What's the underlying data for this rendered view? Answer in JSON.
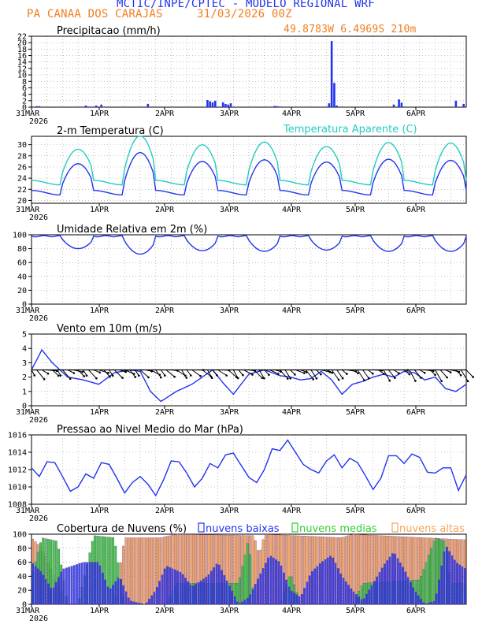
{
  "header": {
    "title": "MCTIC/INPE/CPTEC - MODELO REGIONAL WRF",
    "location": "PA CANAA DOS CARAJAS",
    "run": "31/03/2026 00Z",
    "coords": "49.8783W 6.4969S 210m"
  },
  "x_axis": {
    "day_labels": [
      "31MAR",
      "1APR",
      "2APR",
      "3APR",
      "4APR",
      "5APR",
      "6APR"
    ],
    "year_label": "2026",
    "hours_total": 168,
    "step_hours": 1
  },
  "colors": {
    "blue": "#2233ee",
    "cyan": "#22ccc0",
    "orange": "#f5a35a",
    "green": "#33cc33",
    "black": "#000000"
  },
  "chart_data": [
    {
      "id": "precip",
      "type": "bar",
      "title": "Precipitacao (mm/h)",
      "ylim": [
        0,
        22
      ],
      "yticks": [
        0,
        2,
        4,
        6,
        8,
        10,
        12,
        14,
        16,
        18,
        20,
        22
      ],
      "events": [
        {
          "h": 2,
          "v": 0.3
        },
        {
          "h": 3,
          "v": 0.3
        },
        {
          "h": 21,
          "v": 0.5
        },
        {
          "h": 22,
          "v": 0.2
        },
        {
          "h": 25,
          "v": 0.5
        },
        {
          "h": 27,
          "v": 0.8
        },
        {
          "h": 45,
          "v": 1.0
        },
        {
          "h": 68,
          "v": 2.2
        },
        {
          "h": 69,
          "v": 1.8
        },
        {
          "h": 70,
          "v": 1.5
        },
        {
          "h": 71,
          "v": 2.0
        },
        {
          "h": 74,
          "v": 1.5
        },
        {
          "h": 75,
          "v": 1.0
        },
        {
          "h": 76,
          "v": 0.8
        },
        {
          "h": 77,
          "v": 1.2
        },
        {
          "h": 94,
          "v": 0.4
        },
        {
          "h": 95,
          "v": 0.3
        },
        {
          "h": 115,
          "v": 1.2
        },
        {
          "h": 116,
          "v": 20.5
        },
        {
          "h": 117,
          "v": 7.5
        },
        {
          "h": 118,
          "v": 0.5
        },
        {
          "h": 140,
          "v": 0.8
        },
        {
          "h": 142,
          "v": 2.4
        },
        {
          "h": 143,
          "v": 1.4
        },
        {
          "h": 164,
          "v": 2.0
        },
        {
          "h": 167,
          "v": 1.0
        }
      ]
    },
    {
      "id": "temp",
      "type": "line",
      "title": "2-m Temperatura (C)",
      "series_labels": [
        "Temperatura Aparente (C)"
      ],
      "ylim": [
        19.5,
        31.5
      ],
      "yticks": [
        20,
        22,
        24,
        26,
        28,
        30
      ],
      "series": [
        {
          "name": "Temperatura (C)",
          "color": "blue",
          "base": 20.8,
          "amps": [
            5.2,
            7.2,
            5.6,
            5.9,
            5.5,
            6.0,
            5.8,
            5.5
          ]
        },
        {
          "name": "Temperatura Aparente (C)",
          "color": "cyan",
          "base": 22.6,
          "amps": [
            6.0,
            8.4,
            6.8,
            7.3,
            6.5,
            7.2,
            7.1,
            6.4
          ]
        }
      ]
    },
    {
      "id": "rh",
      "type": "line",
      "title": "Umidade Relativa em 2m (%)",
      "ylim": [
        0,
        100
      ],
      "yticks": [
        0,
        20,
        40,
        60,
        80,
        100
      ],
      "min_by_day": [
        80,
        72,
        77,
        76,
        78,
        76,
        76,
        78
      ]
    },
    {
      "id": "wind",
      "type": "line",
      "title": "Vento em 10m (m/s)",
      "ylim": [
        0,
        5
      ],
      "yticks": [
        0,
        1,
        2,
        3,
        4,
        5
      ],
      "speed_points": [
        [
          0,
          2.5
        ],
        [
          4,
          3.9
        ],
        [
          8,
          3.0
        ],
        [
          14,
          2.0
        ],
        [
          20,
          1.8
        ],
        [
          26,
          1.5
        ],
        [
          32,
          2.3
        ],
        [
          38,
          2.5
        ],
        [
          42,
          2.4
        ],
        [
          46,
          1.0
        ],
        [
          50,
          0.3
        ],
        [
          56,
          1.0
        ],
        [
          62,
          1.5
        ],
        [
          66,
          2.0
        ],
        [
          70,
          2.5
        ],
        [
          74,
          1.6
        ],
        [
          78,
          0.8
        ],
        [
          84,
          2.2
        ],
        [
          90,
          2.5
        ],
        [
          96,
          2.1
        ],
        [
          100,
          2.0
        ],
        [
          104,
          1.8
        ],
        [
          108,
          1.9
        ],
        [
          112,
          2.4
        ],
        [
          116,
          1.8
        ],
        [
          120,
          0.8
        ],
        [
          124,
          1.5
        ],
        [
          128,
          1.7
        ],
        [
          132,
          2.0
        ],
        [
          136,
          2.2
        ],
        [
          140,
          2.0
        ],
        [
          144,
          2.4
        ],
        [
          148,
          2.3
        ],
        [
          152,
          1.8
        ],
        [
          156,
          2.0
        ],
        [
          160,
          1.2
        ],
        [
          164,
          1.0
        ],
        [
          168,
          1.5
        ]
      ]
    },
    {
      "id": "pressure",
      "type": "line",
      "title": "Pressao ao Nivel Medio do Mar (hPa)",
      "ylim": [
        1008,
        1016
      ],
      "yticks": [
        1008,
        1010,
        1012,
        1014,
        1016
      ],
      "points": [
        [
          0,
          1012.2
        ],
        [
          3,
          1011.2
        ],
        [
          6,
          1012.9
        ],
        [
          9,
          1012.8
        ],
        [
          12,
          1011.2
        ],
        [
          15,
          1009.5
        ],
        [
          18,
          1010.0
        ],
        [
          21,
          1011.5
        ],
        [
          24,
          1011.0
        ],
        [
          27,
          1012.8
        ],
        [
          30,
          1012.6
        ],
        [
          33,
          1011.0
        ],
        [
          36,
          1009.3
        ],
        [
          39,
          1010.5
        ],
        [
          42,
          1011.2
        ],
        [
          45,
          1010.3
        ],
        [
          48,
          1009.0
        ],
        [
          51,
          1010.8
        ],
        [
          54,
          1013.0
        ],
        [
          57,
          1012.9
        ],
        [
          60,
          1011.6
        ],
        [
          63,
          1010.0
        ],
        [
          66,
          1011.0
        ],
        [
          69,
          1012.7
        ],
        [
          72,
          1012.2
        ],
        [
          75,
          1013.7
        ],
        [
          78,
          1013.9
        ],
        [
          81,
          1012.5
        ],
        [
          84,
          1011.1
        ],
        [
          87,
          1010.5
        ],
        [
          90,
          1012.0
        ],
        [
          93,
          1014.4
        ],
        [
          96,
          1014.2
        ],
        [
          99,
          1015.4
        ],
        [
          102,
          1014.0
        ],
        [
          105,
          1012.6
        ],
        [
          108,
          1012.0
        ],
        [
          111,
          1011.6
        ],
        [
          114,
          1013.0
        ],
        [
          117,
          1013.7
        ],
        [
          120,
          1012.2
        ],
        [
          123,
          1013.3
        ],
        [
          126,
          1012.8
        ],
        [
          129,
          1011.3
        ],
        [
          132,
          1009.7
        ],
        [
          135,
          1011.0
        ],
        [
          138,
          1013.6
        ],
        [
          141,
          1013.6
        ],
        [
          144,
          1012.7
        ],
        [
          147,
          1013.8
        ],
        [
          150,
          1013.4
        ],
        [
          153,
          1011.7
        ],
        [
          156,
          1011.6
        ],
        [
          159,
          1012.2
        ],
        [
          162,
          1012.2
        ],
        [
          165,
          1009.6
        ],
        [
          168,
          1011.4
        ]
      ]
    },
    {
      "id": "clouds",
      "type": "bar",
      "title": "Cobertura de Nuvens (%)",
      "legend": [
        "nuvens baixas",
        "nuvens medias",
        "nuvens altas"
      ],
      "ylim": [
        0,
        100
      ],
      "yticks": [
        0,
        20,
        40,
        60,
        80,
        100
      ],
      "layers": {
        "altas": {
          "color": "orange",
          "points": [
            [
              0,
              95
            ],
            [
              4,
              80
            ],
            [
              10,
              30
            ],
            [
              14,
              0
            ],
            [
              24,
              0
            ],
            [
              32,
              0
            ],
            [
              36,
              95
            ],
            [
              50,
              95
            ],
            [
              56,
              100
            ],
            [
              86,
              98
            ],
            [
              88,
              70
            ],
            [
              90,
              100
            ],
            [
              120,
              95
            ],
            [
              124,
              100
            ],
            [
              168,
              92
            ]
          ]
        },
        "medias": {
          "color": "green",
          "points": [
            [
              0,
              40
            ],
            [
              4,
              95
            ],
            [
              10,
              90
            ],
            [
              14,
              0
            ],
            [
              18,
              0
            ],
            [
              24,
              98
            ],
            [
              32,
              95
            ],
            [
              36,
              0
            ],
            [
              52,
              0
            ],
            [
              56,
              30
            ],
            [
              80,
              30
            ],
            [
              84,
              95
            ],
            [
              86,
              0
            ],
            [
              92,
              0
            ],
            [
              96,
              0
            ],
            [
              100,
              45
            ],
            [
              104,
              0
            ],
            [
              124,
              0
            ],
            [
              128,
              30
            ],
            [
              150,
              35
            ],
            [
              156,
              95
            ],
            [
              160,
              90
            ],
            [
              162,
              30
            ],
            [
              168,
              30
            ]
          ]
        },
        "baixas": {
          "color": "blue",
          "points": [
            [
              0,
              60
            ],
            [
              4,
              45
            ],
            [
              8,
              20
            ],
            [
              12,
              50
            ],
            [
              20,
              60
            ],
            [
              26,
              60
            ],
            [
              30,
              20
            ],
            [
              34,
              40
            ],
            [
              38,
              5
            ],
            [
              44,
              0
            ],
            [
              48,
              20
            ],
            [
              52,
              55
            ],
            [
              58,
              45
            ],
            [
              62,
              25
            ],
            [
              68,
              40
            ],
            [
              72,
              60
            ],
            [
              76,
              30
            ],
            [
              80,
              0
            ],
            [
              84,
              10
            ],
            [
              88,
              40
            ],
            [
              92,
              70
            ],
            [
              96,
              60
            ],
            [
              100,
              20
            ],
            [
              104,
              10
            ],
            [
              108,
              45
            ],
            [
              112,
              60
            ],
            [
              116,
              70
            ],
            [
              120,
              40
            ],
            [
              124,
              20
            ],
            [
              128,
              5
            ],
            [
              132,
              30
            ],
            [
              136,
              55
            ],
            [
              140,
              75
            ],
            [
              144,
              50
            ],
            [
              148,
              20
            ],
            [
              152,
              0
            ],
            [
              156,
              5
            ],
            [
              160,
              85
            ],
            [
              164,
              60
            ],
            [
              168,
              50
            ]
          ]
        }
      }
    }
  ]
}
